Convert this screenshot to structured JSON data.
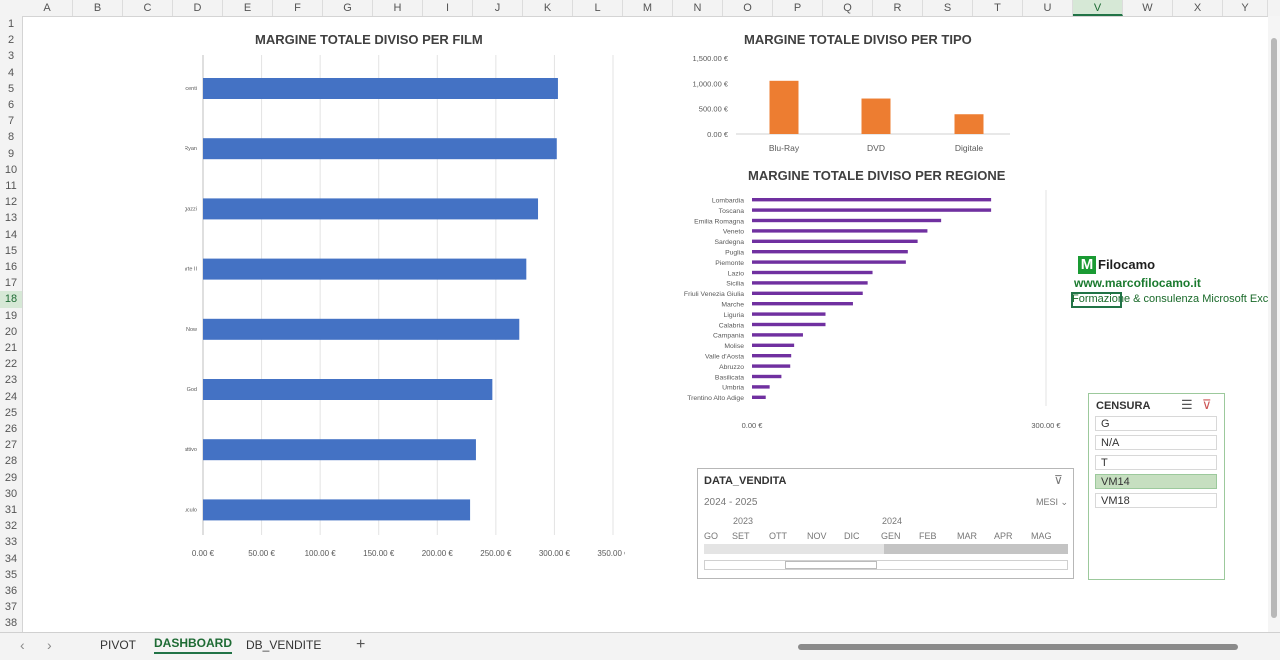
{
  "columns": [
    "A",
    "B",
    "C",
    "D",
    "E",
    "F",
    "G",
    "H",
    "I",
    "J",
    "K",
    "L",
    "M",
    "N",
    "O",
    "P",
    "Q",
    "R",
    "S",
    "T",
    "U",
    "V",
    "W",
    "X",
    "Y"
  ],
  "selected_column": "V",
  "rows": [
    "1",
    "2",
    "3",
    "4",
    "5",
    "6",
    "7",
    "8",
    "9",
    "10",
    "11",
    "12",
    "13",
    "14",
    "15",
    "16",
    "17",
    "18",
    "19",
    "20",
    "21",
    "22",
    "23",
    "24",
    "25",
    "26",
    "27",
    "28",
    "29",
    "30",
    "31",
    "32",
    "33",
    "34",
    "35",
    "36",
    "37",
    "38"
  ],
  "selected_row": "18",
  "sheet_tabs": [
    "PIVOT",
    "DASHBOARD",
    "DB_VENDITE"
  ],
  "active_tab": "DASHBOARD",
  "add_sheet_label": "+",
  "nav": {
    "prev": "‹",
    "next": "›"
  },
  "icons": {
    "nav_prev": "chevron-left-icon",
    "nav_next": "chevron-right-icon",
    "add": "plus-icon",
    "multiselect": "multi-select-icon",
    "clear_filter": "clear-filter-icon"
  },
  "logo": {
    "mark": "M",
    "name": "Filocamo",
    "url": "www.marcofilocamo.it",
    "tagline": "Formazione & consulenza Microsoft Excel"
  },
  "slicer": {
    "title": "CENSURA",
    "items": [
      "G",
      "N/A",
      "T",
      "VM14",
      "VM18"
    ],
    "selected": "VM14"
  },
  "timeline": {
    "title": "DATA_VENDITA",
    "range": "2024 - 2025",
    "level": "MESI",
    "years": [
      "2023",
      "2024"
    ],
    "months": [
      "GO",
      "SET",
      "OTT",
      "NOV",
      "DIC",
      "GEN",
      "FEB",
      "MAR",
      "APR",
      "MAG"
    ]
  },
  "colors": {
    "film": "#4472c4",
    "tipo": "#ed7d31",
    "regione": "#7030a0",
    "accent": "#217346"
  },
  "chart_data": [
    {
      "type": "bar",
      "orientation": "horizontal",
      "title": "MARGINE TOTALE DIVISO PER FILM",
      "categories": [
        "Il silenzio degli innocenti",
        "Salvate il soldato Ryan",
        "Quei bravi ragazzi",
        "Il padrino - Parte II",
        "Apocalypse Now",
        "City of God",
        "Il buono, il brutto, il cattivo",
        "Qualcuno volò sul nido del cuculo"
      ],
      "values": [
        303,
        302,
        286,
        276,
        270,
        247,
        233,
        228
      ],
      "ticks": [
        "0.00 €",
        "50.00 €",
        "100.00 €",
        "150.00 €",
        "200.00 €",
        "250.00 €",
        "300.00 €",
        "350.00 €"
      ],
      "xlim": [
        0,
        350
      ],
      "grid": true
    },
    {
      "type": "bar",
      "title": "MARGINE TOTALE DIVISO PER TIPO",
      "categories": [
        "Blu-Ray",
        "DVD",
        "Digitale"
      ],
      "values": [
        1050,
        700,
        390
      ],
      "ticks": [
        "0.00 €",
        "500.00 €",
        "1,000.00 €",
        "1,500.00 €"
      ],
      "ylim": [
        0,
        1500
      ],
      "grid": false
    },
    {
      "type": "bar",
      "orientation": "horizontal",
      "title": "MARGINE TOTALE DIVISO PER REGIONE",
      "categories": [
        "Lombardia",
        "Toscana",
        "Emilia Romagna",
        "Veneto",
        "Sardegna",
        "Puglia",
        "Piemonte",
        "Lazio",
        "Sicilia",
        "Friuli Venezia Giulia",
        "Marche",
        "Liguria",
        "Calabria",
        "Campania",
        "Molise",
        "Valle d'Aosta",
        "Abruzzo",
        "Basilicata",
        "Umbria",
        "Trentino Alto Adige"
      ],
      "values": [
        244,
        244,
        193,
        179,
        169,
        159,
        157,
        123,
        118,
        113,
        103,
        75,
        75,
        52,
        43,
        40,
        39,
        30,
        18,
        14
      ],
      "ticks": [
        "0.00 €",
        "300.00 €"
      ],
      "xlim": [
        0,
        300
      ],
      "grid": false
    }
  ]
}
